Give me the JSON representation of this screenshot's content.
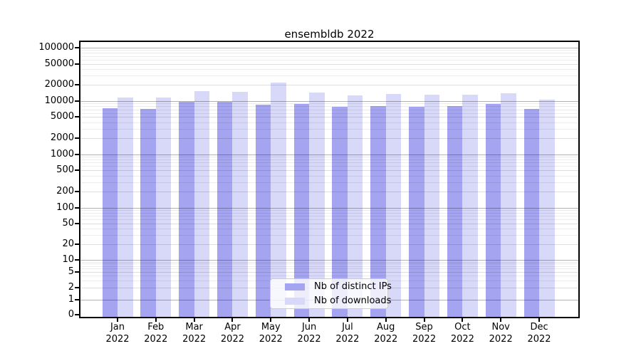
{
  "chart_data": {
    "type": "bar",
    "title": "ensembldb 2022",
    "xlabel": "",
    "ylabel": "",
    "yscale": "symlog",
    "ylim": [
      0,
      100000
    ],
    "grid": "both",
    "grid_above_bars": true,
    "legend_position": "lower center",
    "categories": [
      "Jan",
      "Feb",
      "Mar",
      "Apr",
      "May",
      "Jun",
      "Jul",
      "Aug",
      "Sep",
      "Oct",
      "Nov",
      "Dec"
    ],
    "x_tick_second_line": "2022",
    "y_ticks": [
      0,
      1,
      2,
      5,
      10,
      20,
      50,
      100,
      200,
      500,
      1000,
      2000,
      5000,
      10000,
      20000,
      50000,
      100000
    ],
    "series": [
      {
        "name": "Nb of distinct IPs",
        "color": "#a4a4f0",
        "values": [
          7400,
          7200,
          9600,
          9700,
          8700,
          8800,
          7800,
          8000,
          7700,
          8100,
          8900,
          7100
        ]
      },
      {
        "name": "Nb of downloads",
        "color": "#d8d8f8",
        "values": [
          11800,
          11600,
          15200,
          14900,
          22500,
          14500,
          12700,
          13500,
          13000,
          13300,
          14200,
          10600
        ]
      }
    ]
  },
  "colors": {
    "spine": "#000000",
    "grid_major": "rgba(0,0,0,0.30)",
    "grid_labeled_minor": "rgba(0,0,0,0.13)",
    "grid_minor": "rgba(0,0,0,0.075)"
  }
}
